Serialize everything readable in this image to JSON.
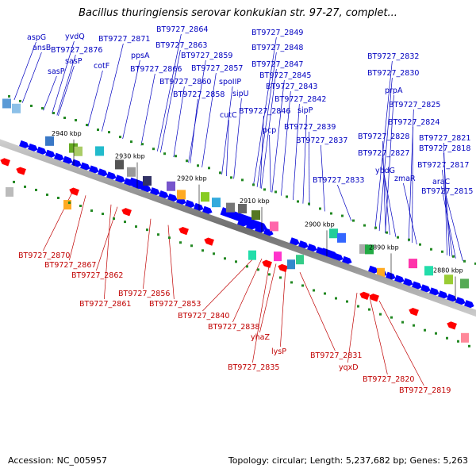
{
  "title": "Bacillus thuringiensis serovar konkukian str. 97-27, complet...",
  "footer": {
    "accession": "Accession: NC_005957",
    "summary": "Topology: circular; Length: 5,237,682 bp; Genes: 5,263"
  },
  "ticks": [
    "2940 kbp",
    "2930 kbp",
    "2920 kbp",
    "2910 kbp",
    "2900 kbp",
    "2890 kbp",
    "2880 kbp"
  ],
  "labels_top": [
    "aspG",
    "ansB",
    "yvdQ",
    "BT9727_2876",
    "BT9727_2871",
    "sasP",
    "sasP",
    "cotF",
    "BT9727_2864",
    "BT9727_2863",
    "ppsA",
    "BT9727_2859",
    "BT9727_2866",
    "BT9727_2857",
    "BT9727_2860",
    "spoIIP",
    "BT9727_2858",
    "sipU",
    "cutC",
    "BT9727_2849",
    "BT9727_2848",
    "BT9727_2847",
    "BT9727_2845",
    "BT9727_2843",
    "BT9727_2842",
    "sipP",
    "BT9727_2846",
    "pcp",
    "BT9727_2839",
    "BT9727_2837",
    "BT9727_2832",
    "BT9727_2830",
    "prpA",
    "BT9727_2825",
    "BT9727_2824",
    "BT9727_2828",
    "BT9727_2821",
    "BT9727_2827",
    "BT9727_2818",
    "BT9727_2817",
    "ybdG",
    "BT9727_2833",
    "zmaR",
    "araC",
    "BT9727_2815"
  ],
  "labels_bottom": [
    "BT9727_2870",
    "BT9727_2867",
    "BT9727_2862",
    "BT9727_2856",
    "BT9727_2861",
    "BT9727_2853",
    "BT9727_2840",
    "BT9727_2838",
    "yhaZ",
    "lysP",
    "BT9727_2835",
    "BT9727_2831",
    "yqxD",
    "BT9727_2820",
    "BT9727_2819"
  ],
  "colors": {
    "forward_gene": "#0000ff",
    "reverse_gene": "#ff0000",
    "backbone": "#888888",
    "top_label": "#0000c0",
    "bottom_label": "#c00000",
    "rna_green": "#228822"
  }
}
